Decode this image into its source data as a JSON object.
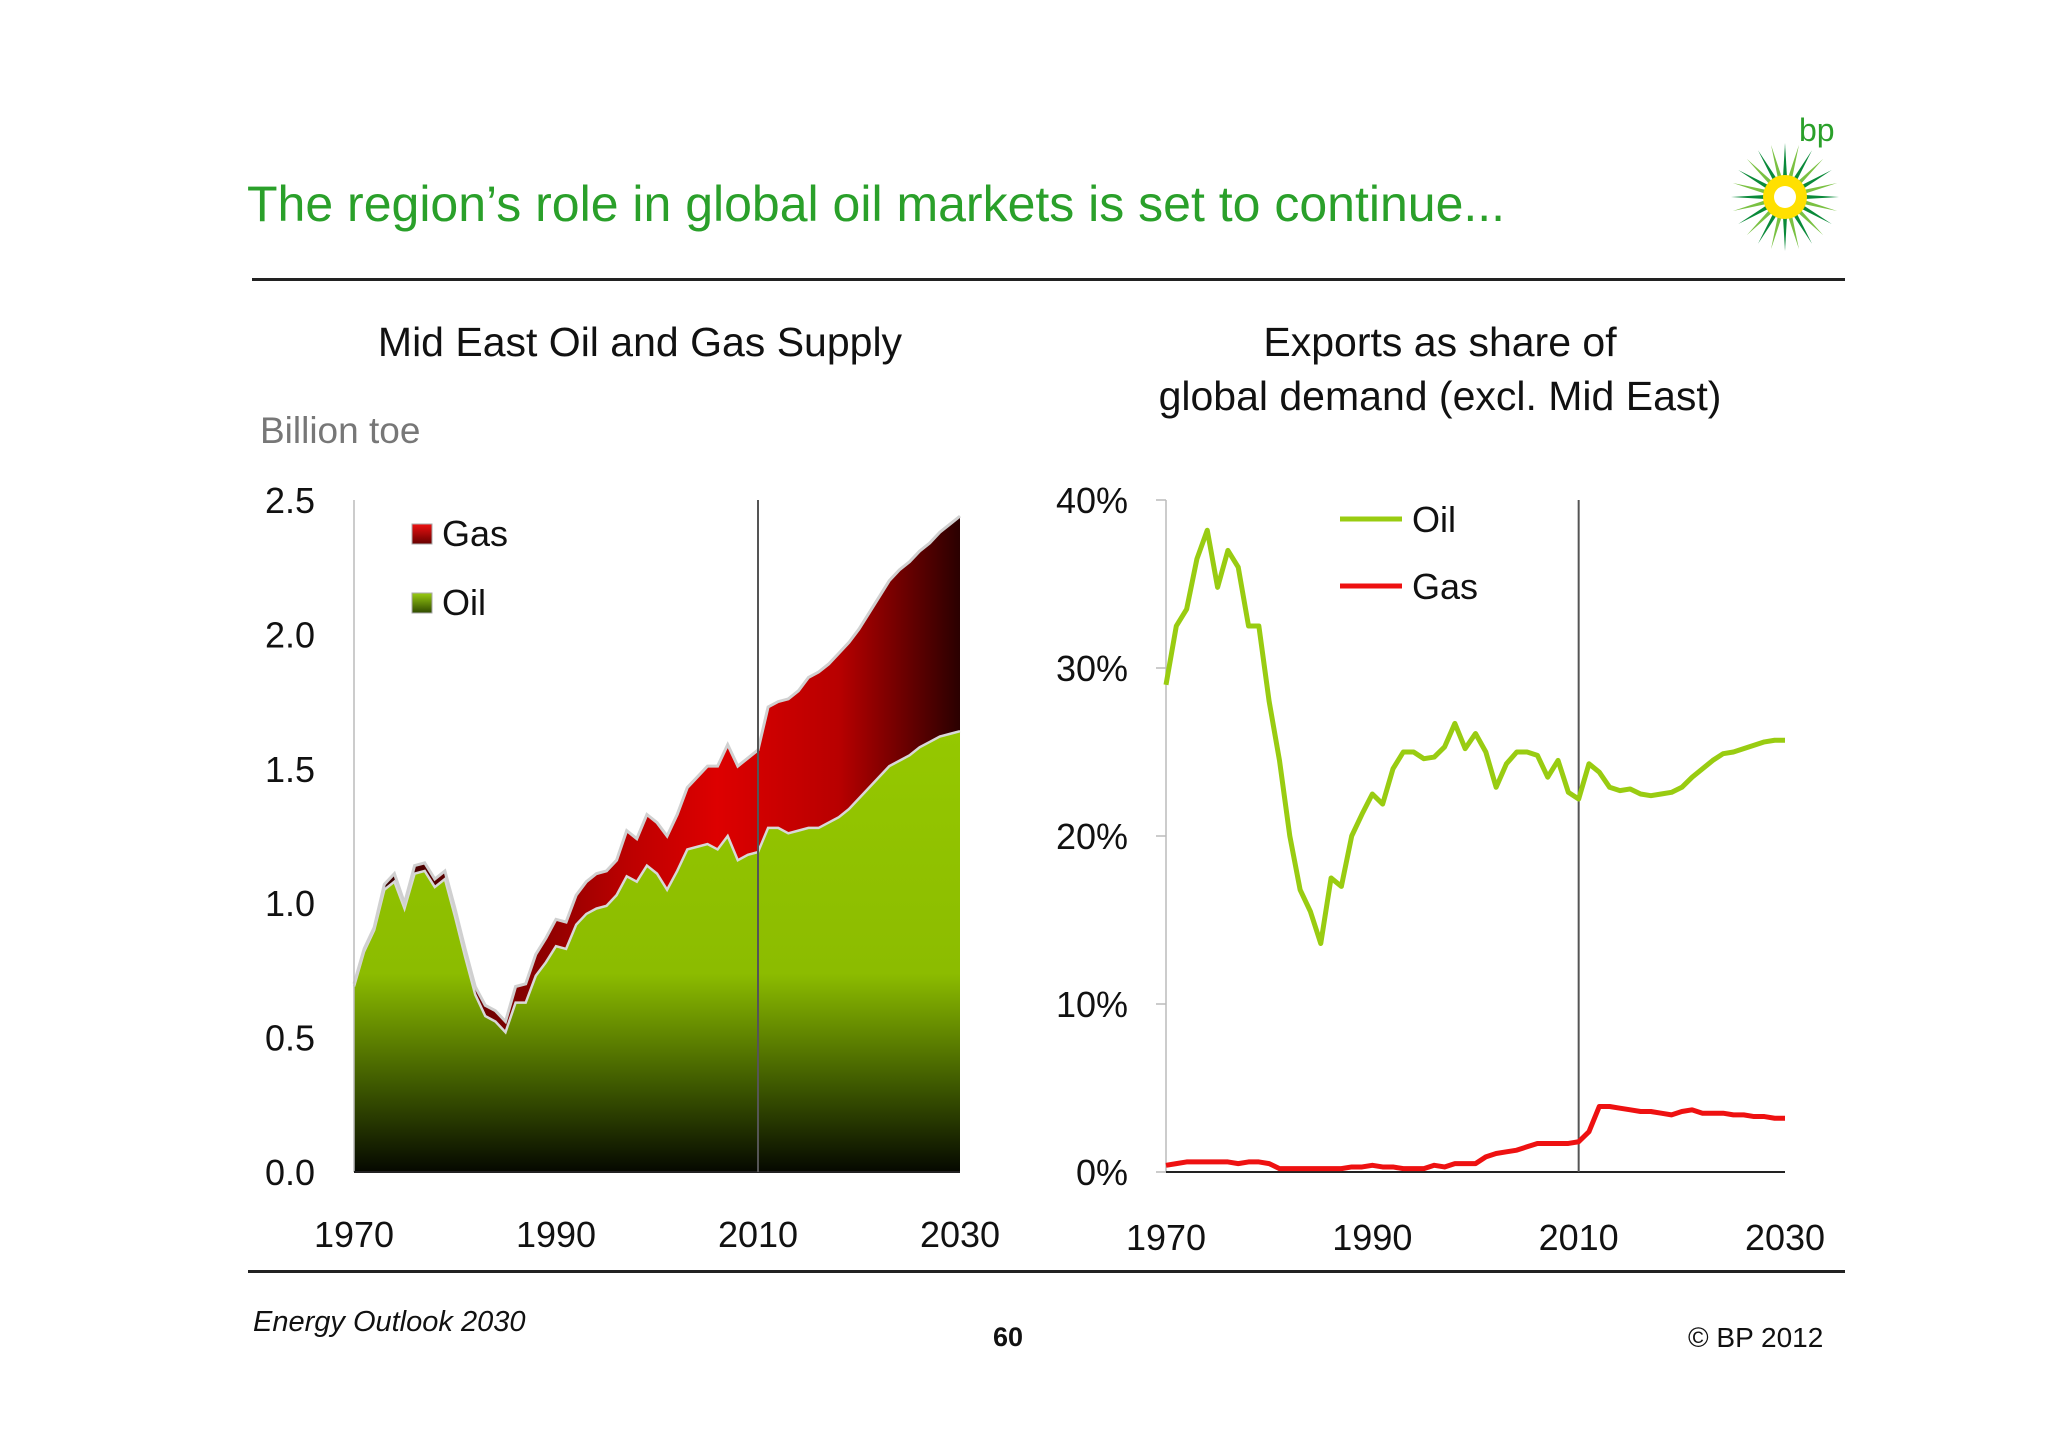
{
  "slide": {
    "title": "The region’s role in global oil markets is set to continue...",
    "logo_text": "bp",
    "footer_left": "Energy Outlook 2030",
    "page_number": "60",
    "footer_right": "© BP 2012"
  },
  "colors": {
    "brand_green": "#2aa02a",
    "oil_area": "#95c800",
    "gas_area": "#dd0000",
    "oil_line": "#99cc11",
    "gas_line": "#ee1111"
  },
  "chart_data": [
    {
      "type": "area",
      "stacked": true,
      "title": "Mid East Oil and Gas Supply",
      "ylabel": "Billion toe",
      "xlim": [
        1970,
        2030
      ],
      "ylim": [
        0,
        2.5
      ],
      "yticks": [
        "0.0",
        "0.5",
        "1.0",
        "1.5",
        "2.0",
        "2.5"
      ],
      "xticks": [
        "1970",
        "1990",
        "2010",
        "2030"
      ],
      "vertical_marker": 2010,
      "legend": "top-left",
      "x": [
        1970,
        1971,
        1972,
        1973,
        1974,
        1975,
        1976,
        1977,
        1978,
        1979,
        1980,
        1981,
        1982,
        1983,
        1984,
        1985,
        1986,
        1987,
        1988,
        1989,
        1990,
        1991,
        1992,
        1993,
        1994,
        1995,
        1996,
        1997,
        1998,
        1999,
        2000,
        2001,
        2002,
        2003,
        2004,
        2005,
        2006,
        2007,
        2008,
        2009,
        2010,
        2011,
        2012,
        2013,
        2014,
        2015,
        2016,
        2017,
        2018,
        2019,
        2020,
        2021,
        2022,
        2023,
        2024,
        2025,
        2026,
        2027,
        2028,
        2029,
        2030
      ],
      "series": [
        {
          "name": "Oil",
          "values": [
            0.69,
            0.82,
            0.9,
            1.05,
            1.08,
            0.98,
            1.11,
            1.12,
            1.06,
            1.09,
            0.95,
            0.8,
            0.66,
            0.58,
            0.56,
            0.52,
            0.63,
            0.63,
            0.73,
            0.78,
            0.84,
            0.83,
            0.92,
            0.96,
            0.98,
            0.99,
            1.03,
            1.1,
            1.08,
            1.14,
            1.11,
            1.05,
            1.12,
            1.2,
            1.21,
            1.22,
            1.2,
            1.25,
            1.16,
            1.18,
            1.19,
            1.28,
            1.28,
            1.26,
            1.27,
            1.28,
            1.28,
            1.3,
            1.32,
            1.35,
            1.39,
            1.43,
            1.47,
            1.51,
            1.53,
            1.55,
            1.58,
            1.6,
            1.62,
            1.63,
            1.64
          ]
        },
        {
          "name": "Gas",
          "values": [
            0.01,
            0.01,
            0.01,
            0.02,
            0.03,
            0.02,
            0.03,
            0.03,
            0.03,
            0.03,
            0.03,
            0.03,
            0.03,
            0.04,
            0.04,
            0.04,
            0.06,
            0.07,
            0.08,
            0.09,
            0.1,
            0.1,
            0.11,
            0.12,
            0.13,
            0.13,
            0.13,
            0.17,
            0.16,
            0.19,
            0.19,
            0.2,
            0.21,
            0.23,
            0.26,
            0.29,
            0.31,
            0.34,
            0.35,
            0.36,
            0.38,
            0.45,
            0.47,
            0.5,
            0.52,
            0.56,
            0.58,
            0.59,
            0.61,
            0.62,
            0.63,
            0.65,
            0.67,
            0.69,
            0.71,
            0.72,
            0.73,
            0.74,
            0.76,
            0.78,
            0.8
          ]
        }
      ]
    },
    {
      "type": "line",
      "title": "Exports as share of global demand (excl. Mid East)",
      "xlim": [
        1970,
        2030
      ],
      "ylim": [
        0,
        40
      ],
      "yticks": [
        "0%",
        "10%",
        "20%",
        "30%",
        "40%"
      ],
      "xticks": [
        "1970",
        "1990",
        "2010",
        "2030"
      ],
      "vertical_marker": 2010,
      "legend": "top-center",
      "x": [
        1970,
        1971,
        1972,
        1973,
        1974,
        1975,
        1976,
        1977,
        1978,
        1979,
        1980,
        1981,
        1982,
        1983,
        1984,
        1985,
        1986,
        1987,
        1988,
        1989,
        1990,
        1991,
        1992,
        1993,
        1994,
        1995,
        1996,
        1997,
        1998,
        1999,
        2000,
        2001,
        2002,
        2003,
        2004,
        2005,
        2006,
        2007,
        2008,
        2009,
        2010,
        2011,
        2012,
        2013,
        2014,
        2015,
        2016,
        2017,
        2018,
        2019,
        2020,
        2021,
        2022,
        2023,
        2024,
        2025,
        2026,
        2027,
        2028,
        2029,
        2030
      ],
      "series": [
        {
          "name": "Oil",
          "values": [
            29,
            32.5,
            33.5,
            36.5,
            38.2,
            34.8,
            37,
            36,
            32.5,
            32.5,
            28,
            24.5,
            20,
            16.8,
            15.5,
            13.6,
            17.5,
            17,
            20,
            21.3,
            22.5,
            21.9,
            24,
            25,
            25,
            24.6,
            24.7,
            25.3,
            26.7,
            25.2,
            26.1,
            25,
            22.9,
            24.3,
            25,
            25,
            24.8,
            23.5,
            24.5,
            22.6,
            22.2,
            24.3,
            23.8,
            22.9,
            22.7,
            22.8,
            22.5,
            22.4,
            22.5,
            22.6,
            22.9,
            23.5,
            24,
            24.5,
            24.9,
            25,
            25.2,
            25.4,
            25.6,
            25.7,
            25.7
          ]
        },
        {
          "name": "Gas",
          "values": [
            0.4,
            0.5,
            0.6,
            0.6,
            0.6,
            0.6,
            0.6,
            0.5,
            0.6,
            0.6,
            0.5,
            0.2,
            0.2,
            0.2,
            0.2,
            0.2,
            0.2,
            0.2,
            0.3,
            0.3,
            0.4,
            0.3,
            0.3,
            0.2,
            0.2,
            0.2,
            0.4,
            0.3,
            0.5,
            0.5,
            0.5,
            0.9,
            1.1,
            1.2,
            1.3,
            1.5,
            1.7,
            1.7,
            1.7,
            1.7,
            1.8,
            2.4,
            3.9,
            3.9,
            3.8,
            3.7,
            3.6,
            3.6,
            3.5,
            3.4,
            3.6,
            3.7,
            3.5,
            3.5,
            3.5,
            3.4,
            3.4,
            3.3,
            3.3,
            3.2,
            3.2
          ]
        }
      ]
    }
  ]
}
